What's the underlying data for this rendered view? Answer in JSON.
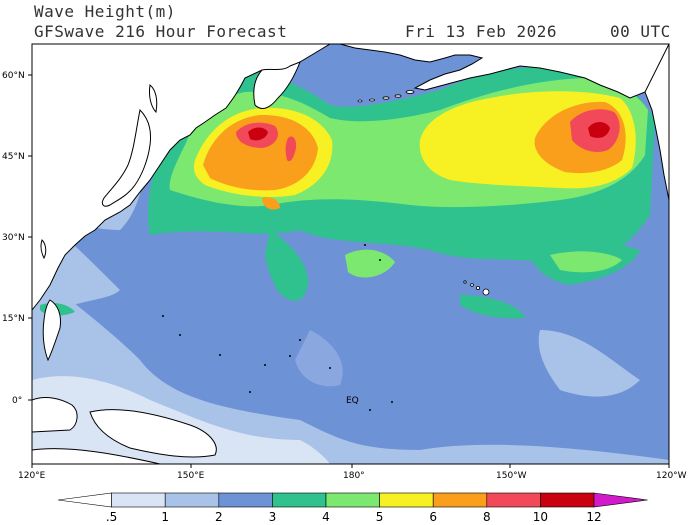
{
  "header": {
    "title": "Wave Height(m)",
    "subtitle": "GFSwave 216 Hour Forecast",
    "date": "Fri 13 Feb 2026",
    "time": "00 UTC"
  },
  "axes": {
    "lat_labels": [
      "60°N",
      "45°N",
      "30°N",
      "15°N",
      "0°"
    ],
    "lon_labels": [
      "120°E",
      "150°E",
      "180°",
      "150°W",
      "120°W"
    ],
    "equator_label": "EQ"
  },
  "colorbar": {
    "labels": [
      ".5",
      "1",
      "2",
      "3",
      "4",
      "5",
      "6",
      "8",
      "10",
      "12"
    ],
    "colors": [
      "#ffffff",
      "#d9e5f5",
      "#a9c2e8",
      "#6e92d6",
      "#2fc28f",
      "#7de86f",
      "#f7f023",
      "#f99f1b",
      "#f2495a",
      "#c8000f",
      "#d21acb"
    ]
  },
  "map": {
    "ocean_base_color": "#6e92d6",
    "land_color": "#ffffff",
    "coast_color": "#000000"
  }
}
